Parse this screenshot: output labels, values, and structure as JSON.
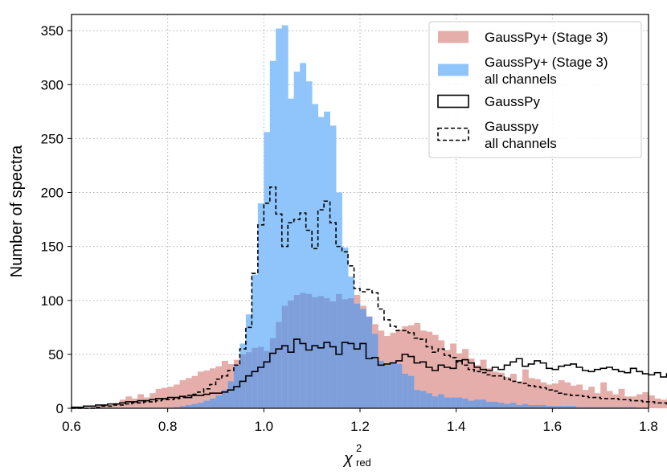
{
  "chart_data": {
    "type": "histogram",
    "xlabel": "χ",
    "xlabel_sup": "2",
    "xlabel_sub": "red",
    "ylabel": "Number of spectra",
    "xlim": [
      0.6,
      1.8
    ],
    "ylim": [
      0,
      365
    ],
    "xticks": [
      0.6,
      0.8,
      1.0,
      1.2,
      1.4,
      1.6,
      1.8
    ],
    "xtick_labels": [
      "0.6",
      "0.8",
      "1.0",
      "1.2",
      "1.4",
      "1.6",
      "1.8"
    ],
    "yticks": [
      0,
      50,
      100,
      150,
      200,
      250,
      300,
      350
    ],
    "ytick_labels": [
      "0",
      "50",
      "100",
      "150",
      "200",
      "250",
      "300",
      "350"
    ],
    "grid": true,
    "legend_position": "top-right",
    "bin_start": 0.6,
    "bin_width": 0.0125,
    "colors": {
      "stage3_fill": "#e5aeaa",
      "stage3_all_fill": "#8fc5fb",
      "overlap_fill": "#7f9fdb",
      "gausspy_line": "#000000",
      "gausspy_all_line": "#000000",
      "grid": "#b0b0b0"
    },
    "series": [
      {
        "name": "GaussPy+ (Stage 3)",
        "style": "filled",
        "legend_lines": [
          "GaussPy+ (Stage 3)"
        ],
        "values": [
          0,
          0,
          0,
          1,
          2,
          3,
          3,
          5,
          8,
          11,
          9,
          13,
          10,
          14,
          18,
          19,
          20,
          22,
          26,
          28,
          30,
          34,
          35,
          37,
          39,
          44,
          41,
          45,
          50,
          52,
          56,
          57,
          53,
          65,
          80,
          95,
          100,
          105,
          107,
          106,
          103,
          104,
          102,
          99,
          106,
          101,
          102,
          105,
          95,
          85,
          78,
          72,
          67,
          70,
          73,
          76,
          77,
          79,
          72,
          71,
          68,
          63,
          54,
          60,
          51,
          55,
          46,
          40,
          45,
          37,
          34,
          33,
          29,
          32,
          25,
          36,
          28,
          27,
          24,
          22,
          23,
          26,
          24,
          21,
          22,
          17,
          20,
          14,
          24,
          16,
          13,
          18,
          11,
          11,
          13,
          15,
          12,
          9,
          8,
          10
        ]
      },
      {
        "name": "GaussPy+ (Stage 3) all channels",
        "style": "filled",
        "legend_lines": [
          "GaussPy+ (Stage 3)",
          "all channels"
        ],
        "values": [
          0,
          0,
          0,
          0,
          0,
          0,
          0,
          0,
          0,
          0,
          0,
          0,
          0,
          0,
          0,
          0,
          0,
          1,
          2,
          3,
          4,
          5,
          7,
          9,
          12,
          17,
          25,
          40,
          60,
          87,
          124,
          190,
          256,
          322,
          352,
          355,
          287,
          312,
          320,
          303,
          282,
          270,
          275,
          262,
          200,
          149,
          122,
          97,
          92,
          85,
          69,
          44,
          40,
          43,
          41,
          32,
          30,
          17,
          16,
          14,
          11,
          13,
          10,
          10,
          10,
          9,
          7,
          8,
          8,
          6,
          6,
          5,
          4,
          5,
          3,
          4,
          3,
          3,
          3,
          2,
          2,
          2,
          2,
          2,
          1,
          1,
          1,
          1,
          1,
          1,
          1,
          1,
          1,
          1,
          0,
          0,
          0,
          0,
          0,
          0
        ]
      },
      {
        "name": "GaussPy",
        "style": "step",
        "legend_lines": [
          "GaussPy"
        ],
        "values": [
          1,
          1,
          2,
          2,
          3,
          3,
          4,
          4,
          5,
          6,
          6,
          7,
          7,
          8,
          9,
          9,
          10,
          10,
          11,
          10,
          12,
          12,
          13,
          14,
          14,
          15,
          17,
          20,
          25,
          30,
          34,
          38,
          43,
          51,
          55,
          58,
          52,
          64,
          60,
          54,
          58,
          56,
          61,
          57,
          50,
          61,
          60,
          55,
          60,
          46,
          47,
          40,
          41,
          42,
          44,
          50,
          48,
          42,
          43,
          38,
          35,
          40,
          38,
          37,
          44,
          45,
          42,
          38,
          36,
          35,
          38,
          36,
          40,
          43,
          46,
          39,
          41,
          44,
          42,
          37,
          36,
          39,
          40,
          41,
          38,
          35,
          34,
          36,
          37,
          38,
          36,
          34,
          33,
          37,
          34,
          32,
          31,
          33,
          29,
          32
        ]
      },
      {
        "name": "Gausspy all channels",
        "style": "dashed-step",
        "legend_lines": [
          "Gausspy",
          "all channels"
        ],
        "values": [
          0,
          0,
          0,
          0,
          1,
          2,
          2,
          3,
          3,
          4,
          5,
          5,
          6,
          6,
          7,
          8,
          8,
          9,
          10,
          12,
          13,
          15,
          18,
          22,
          27,
          30,
          35,
          40,
          55,
          75,
          125,
          170,
          190,
          205,
          180,
          150,
          172,
          175,
          181,
          165,
          148,
          184,
          192,
          172,
          150,
          145,
          132,
          111,
          108,
          110,
          107,
          92,
          82,
          76,
          72,
          72,
          70,
          65,
          64,
          57,
          52,
          55,
          49,
          47,
          43,
          40,
          36,
          34,
          33,
          31,
          30,
          30,
          27,
          25,
          24,
          23,
          21,
          20,
          19,
          17,
          16,
          14,
          13,
          12,
          12,
          11,
          10,
          10,
          9,
          9,
          9,
          8,
          8,
          7,
          7,
          6,
          6,
          5,
          5,
          4
        ]
      }
    ]
  }
}
